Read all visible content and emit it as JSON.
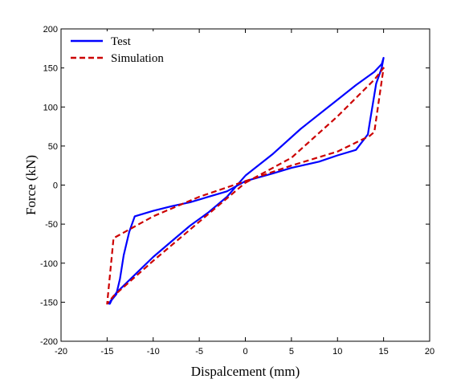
{
  "chart_data": {
    "type": "line",
    "title": "",
    "xlabel": "Dispalcement (mm)",
    "ylabel": "Force (kN)",
    "xlim": [
      -20,
      20
    ],
    "ylim": [
      -200,
      200
    ],
    "xticks": [
      -20,
      -15,
      -10,
      -5,
      0,
      5,
      10,
      15,
      20
    ],
    "yticks": [
      -200,
      -150,
      -100,
      -50,
      0,
      50,
      100,
      150,
      200
    ],
    "xtick_labels": [
      "-20",
      "-15",
      "-10",
      "-5",
      "0",
      "5",
      "10",
      "15",
      "20"
    ],
    "ytick_labels": [
      "-200",
      "-150",
      "-100",
      "-50",
      "0",
      "50",
      "100",
      "150",
      "200"
    ],
    "grid": false,
    "legend_position": "top-left",
    "series": [
      {
        "name": "Test",
        "color": "#0000ff",
        "style": "solid",
        "x": [
          0,
          3,
          6,
          9,
          12,
          14,
          14.8,
          15,
          14.8,
          14.2,
          13.5,
          13.3,
          12,
          10,
          8,
          5,
          3,
          0,
          -2,
          -4,
          -6,
          -8,
          -10,
          -12,
          -12.6,
          -13.2,
          -13.6,
          -14,
          -14.5,
          -14.7,
          -14.8,
          -14.6,
          -14,
          -12,
          -10,
          -8,
          -6,
          -4,
          -2,
          0
        ],
        "y": [
          12,
          40,
          72,
          100,
          128,
          145,
          155,
          163,
          150,
          130,
          80,
          65,
          45,
          38,
          30,
          22,
          15,
          5,
          -8,
          -15,
          -22,
          -27,
          -33,
          -40,
          -60,
          -90,
          -120,
          -140,
          -147,
          -152,
          -152,
          -148,
          -138,
          -115,
          -92,
          -72,
          -52,
          -35,
          -15,
          12
        ]
      },
      {
        "name": "Simulation",
        "color": "#cc0000",
        "style": "dashed",
        "x": [
          0,
          5,
          10,
          14,
          15,
          14,
          13.5,
          10,
          5,
          0,
          -5,
          -10,
          -14.3,
          -15,
          -14.3,
          -10,
          -5,
          0
        ],
        "y": [
          3,
          35,
          88,
          135,
          150,
          68,
          63,
          43,
          25,
          5,
          -15,
          -40,
          -68,
          -152,
          -142,
          -97,
          -47,
          3
        ]
      }
    ]
  }
}
